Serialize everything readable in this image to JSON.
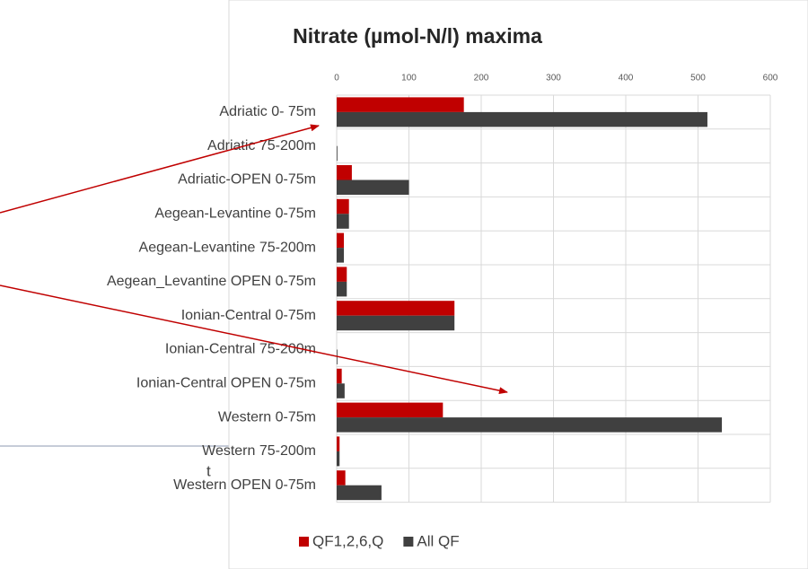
{
  "background_text": "t",
  "chart_data": {
    "type": "bar",
    "orientation": "horizontal",
    "title": "Nitrate (µmol-N/l) maxima",
    "categories": [
      "Adriatic 0- 75m",
      "Adriatic 75-200m",
      "Adriatic-OPEN 0-75m",
      "Aegean-Levantine 0-75m",
      "Aegean-Levantine 75-200m",
      "Aegean_Levantine OPEN 0-75m",
      "Ionian-Central 0-75m",
      "Ionian-Central 75-200m",
      "Ionian-Central OPEN 0-75m",
      "Western 0-75m",
      "Western 75-200m",
      "Western OPEN 0-75m"
    ],
    "series": [
      {
        "name": "QF1,2,6,Q",
        "color": "#c00000",
        "values": [
          176,
          0,
          21,
          17,
          10,
          14,
          163,
          0,
          7,
          147,
          4,
          12
        ]
      },
      {
        "name": "All QF",
        "color": "#404040",
        "values": [
          513,
          1,
          100,
          17,
          10,
          14,
          163,
          1,
          11,
          533,
          4,
          62
        ]
      }
    ],
    "xlim": [
      0,
      600
    ],
    "xticks": [
      0,
      100,
      200,
      300,
      400,
      500,
      600
    ],
    "grid": true,
    "legend": "bottom"
  }
}
